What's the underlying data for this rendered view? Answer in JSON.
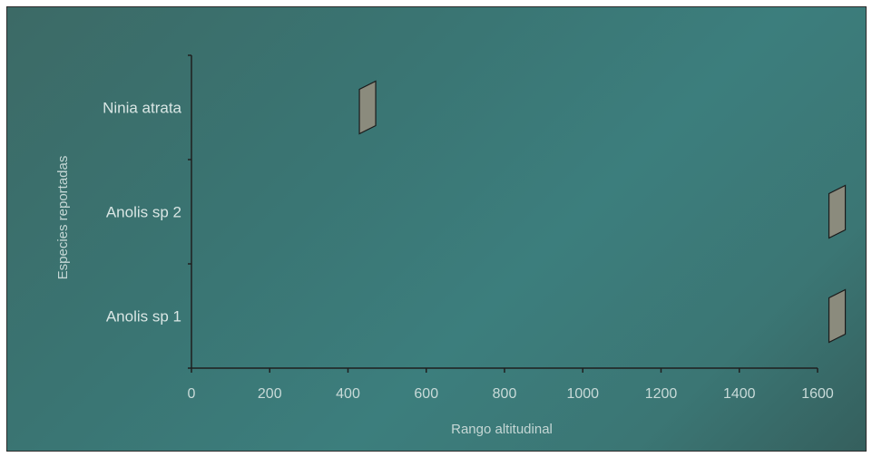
{
  "chart_data": {
    "type": "range",
    "xlabel": "Rango altitudinal",
    "ylabel": "Especies reportadas",
    "xlim": [
      0,
      1600
    ],
    "xticks": [
      0,
      200,
      400,
      600,
      800,
      1000,
      1200,
      1400,
      1600
    ],
    "categories": [
      "Ninia atrata",
      "Anolis sp 2",
      "Anolis sp 1"
    ],
    "values": [
      450,
      1650,
      1650
    ],
    "marker_color": "#8b8b7d",
    "axis_color": "#1f1f1f",
    "grid": false,
    "legend": "none"
  }
}
